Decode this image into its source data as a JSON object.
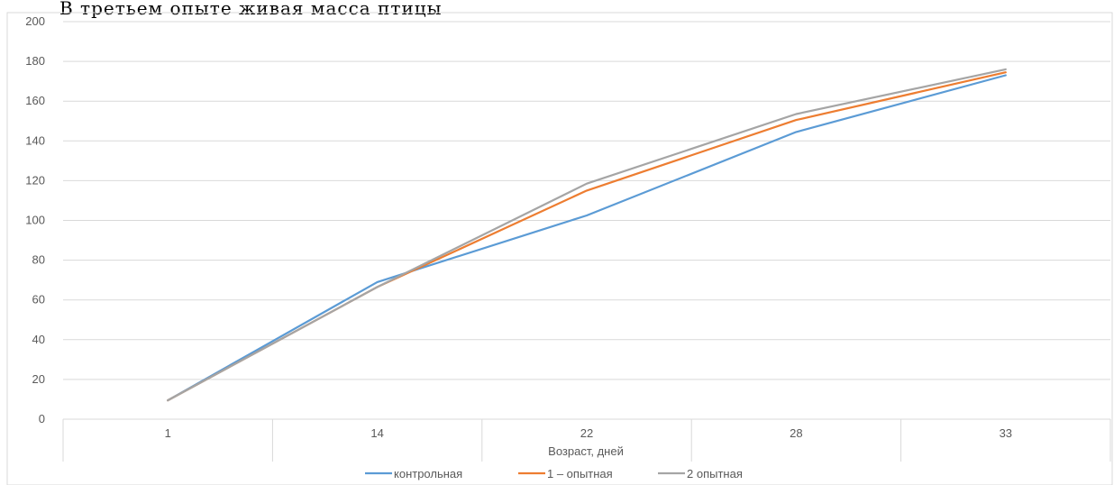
{
  "top_text": "В третьем опыте живая масса птицы",
  "chart_data": {
    "type": "line",
    "categories": [
      "1",
      "14",
      "22",
      "28",
      "33"
    ],
    "xlabel": "Возраст, дней",
    "ylabel": "",
    "ylim": [
      0,
      200
    ],
    "yticks": [
      "0",
      "20",
      "40",
      "60",
      "80",
      "100",
      "120",
      "140",
      "160",
      "180",
      "200"
    ],
    "grid": true,
    "legend_position": "bottom",
    "series": [
      {
        "name": "контрольная",
        "color": "#5B9BD5",
        "values": [
          9.5,
          69,
          102.5,
          144.5,
          173
        ]
      },
      {
        "name": "1 – опытная",
        "color": "#ED7D31",
        "values": [
          9.5,
          66.5,
          115,
          150.5,
          174.5
        ]
      },
      {
        "name": "2 опытная",
        "color": "#A5A5A5",
        "values": [
          9.5,
          66.5,
          118.5,
          153.5,
          176
        ]
      }
    ]
  }
}
